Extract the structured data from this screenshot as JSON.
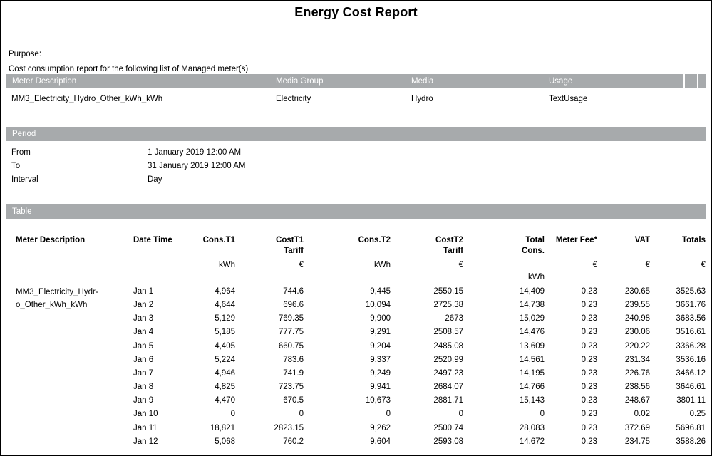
{
  "page": {
    "title": "Energy Cost Report",
    "purpose_label": "Purpose:",
    "purpose_text": "Cost consumption report for the following list of Managed meter(s)"
  },
  "meters": {
    "headers": {
      "meter_description": "Meter Description",
      "media_group": "Media Group",
      "media": "Media",
      "usage": "Usage"
    },
    "rows": [
      {
        "meter_description": "MM3_Electricity_Hydro_Other_kWh_kWh",
        "media_group": "Electricity",
        "media": "Hydro",
        "usage": "TextUsage"
      }
    ]
  },
  "period": {
    "section_label": "Period",
    "fields": [
      {
        "label": "From",
        "value": "1 January 2019 12:00 AM"
      },
      {
        "label": "To",
        "value": "31 January 2019 12:00 AM"
      },
      {
        "label": "Interval",
        "value": "Day"
      }
    ]
  },
  "cost_table": {
    "section_label": "Table",
    "headers": {
      "meter_description": "Meter Description",
      "date_time": "Date Time",
      "cons_t1": "Cons.T1",
      "cost_t1": "CostT1\nTariff",
      "cons_t2": "Cons.T2",
      "cost_t2": "CostT2\nTariff",
      "total_cons": "Total\nCons.",
      "meter_fee": "Meter Fee*",
      "vat": "VAT",
      "totals": "Totals"
    },
    "units": {
      "cons_t1": "kWh",
      "cost_t1": "€",
      "cons_t2": "kWh",
      "cost_t2": "€",
      "total_cons": "\nkWh",
      "meter_fee": "€",
      "vat": "€",
      "totals": "€"
    },
    "meter_name": "MM3_Electricity_Hydr-\no_Other_kWh_kWh",
    "rows": [
      {
        "date": "Jan 1",
        "cons_t1": "4,964",
        "cost_t1": "744.6",
        "cons_t2": "9,445",
        "cost_t2": "2550.15",
        "total_cons": "14,409",
        "meter_fee": "0.23",
        "vat": "230.65",
        "totals": "3525.63"
      },
      {
        "date": "Jan 2",
        "cons_t1": "4,644",
        "cost_t1": "696.6",
        "cons_t2": "10,094",
        "cost_t2": "2725.38",
        "total_cons": "14,738",
        "meter_fee": "0.23",
        "vat": "239.55",
        "totals": "3661.76"
      },
      {
        "date": "Jan 3",
        "cons_t1": "5,129",
        "cost_t1": "769.35",
        "cons_t2": "9,900",
        "cost_t2": "2673",
        "total_cons": "15,029",
        "meter_fee": "0.23",
        "vat": "240.98",
        "totals": "3683.56"
      },
      {
        "date": "Jan 4",
        "cons_t1": "5,185",
        "cost_t1": "777.75",
        "cons_t2": "9,291",
        "cost_t2": "2508.57",
        "total_cons": "14,476",
        "meter_fee": "0.23",
        "vat": "230.06",
        "totals": "3516.61"
      },
      {
        "date": "Jan 5",
        "cons_t1": "4,405",
        "cost_t1": "660.75",
        "cons_t2": "9,204",
        "cost_t2": "2485.08",
        "total_cons": "13,609",
        "meter_fee": "0.23",
        "vat": "220.22",
        "totals": "3366.28"
      },
      {
        "date": "Jan 6",
        "cons_t1": "5,224",
        "cost_t1": "783.6",
        "cons_t2": "9,337",
        "cost_t2": "2520.99",
        "total_cons": "14,561",
        "meter_fee": "0.23",
        "vat": "231.34",
        "totals": "3536.16"
      },
      {
        "date": "Jan 7",
        "cons_t1": "4,946",
        "cost_t1": "741.9",
        "cons_t2": "9,249",
        "cost_t2": "2497.23",
        "total_cons": "14,195",
        "meter_fee": "0.23",
        "vat": "226.76",
        "totals": "3466.12"
      },
      {
        "date": "Jan 8",
        "cons_t1": "4,825",
        "cost_t1": "723.75",
        "cons_t2": "9,941",
        "cost_t2": "2684.07",
        "total_cons": "14,766",
        "meter_fee": "0.23",
        "vat": "238.56",
        "totals": "3646.61"
      },
      {
        "date": "Jan 9",
        "cons_t1": "4,470",
        "cost_t1": "670.5",
        "cons_t2": "10,673",
        "cost_t2": "2881.71",
        "total_cons": "15,143",
        "meter_fee": "0.23",
        "vat": "248.67",
        "totals": "3801.11"
      },
      {
        "date": "Jan 10",
        "cons_t1": "0",
        "cost_t1": "0",
        "cons_t2": "0",
        "cost_t2": "0",
        "total_cons": "0",
        "meter_fee": "0.23",
        "vat": "0.02",
        "totals": "0.25"
      },
      {
        "date": "Jan 11",
        "cons_t1": "18,821",
        "cost_t1": "2823.15",
        "cons_t2": "9,262",
        "cost_t2": "2500.74",
        "total_cons": "28,083",
        "meter_fee": "0.23",
        "vat": "372.69",
        "totals": "5696.81"
      },
      {
        "date": "Jan 12",
        "cons_t1": "5,068",
        "cost_t1": "760.2",
        "cons_t2": "9,604",
        "cost_t2": "2593.08",
        "total_cons": "14,672",
        "meter_fee": "0.23",
        "vat": "234.75",
        "totals": "3588.26"
      }
    ]
  },
  "colors": {
    "section_bar": "#a7aaac",
    "section_bar_text": "#ffffff",
    "page_border": "#000000",
    "body_text": "#000000"
  }
}
